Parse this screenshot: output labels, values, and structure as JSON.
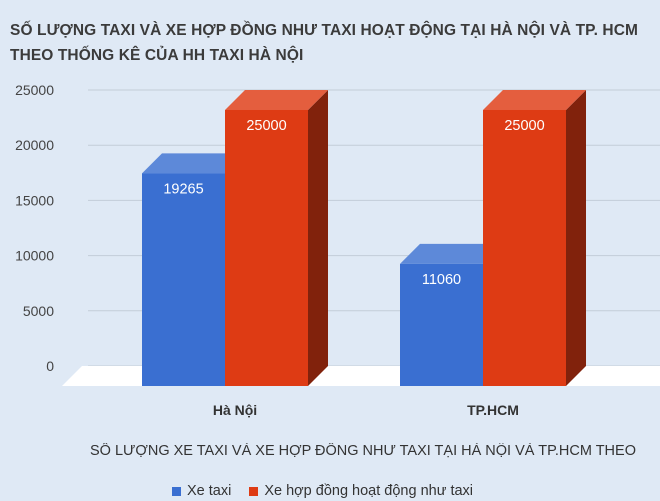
{
  "chart_data": {
    "type": "bar",
    "title": "SỐ LƯỢNG TAXI VÀ XE HỢP ĐỒNG NHƯ TAXI HOẠT ĐỘNG TẠI HÀ NỘI VÀ TP. HCM THEO THỐNG KÊ CỦA HH TAXI HÀ NỘI",
    "categories": [
      "Hà Nội",
      "TP.HCM"
    ],
    "series": [
      {
        "name": "Xe taxi",
        "values": [
          19265,
          11060
        ],
        "color": "#3a6fd1"
      },
      {
        "name": "Xe hợp đồng hoạt động như taxi",
        "values": [
          25000,
          25000
        ],
        "color": "#de3b14"
      }
    ],
    "yticks": [
      0,
      5000,
      10000,
      15000,
      20000,
      25000
    ],
    "ylim": [
      0,
      25000
    ],
    "legend_title": "SỐ LƯỢNG XE TAXI VÀ XE HỢP ĐỒNG NHƯ TAXI TẠI HÀ NỘI VÀ TP.HCM THEO",
    "legend_position": "bottom",
    "grid": true,
    "style": "3d-column"
  }
}
